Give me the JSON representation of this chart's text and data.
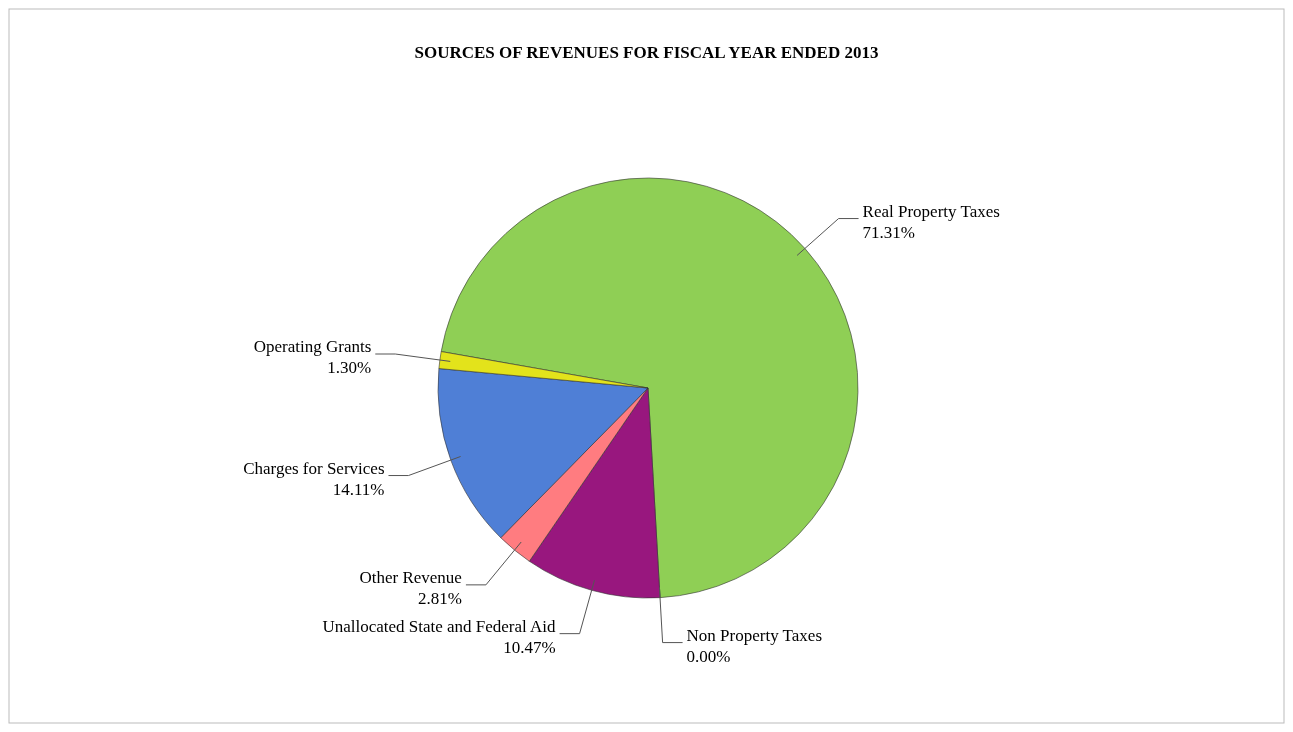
{
  "chart_data": {
    "type": "pie",
    "title": "SOURCES OF REVENUES FOR FISCAL YEAR ENDED 2013",
    "categories": [
      "Real Property Taxes",
      "Non Property Taxes",
      "Unallocated State and Federal Aid",
      "Other Revenue",
      "Charges for Services",
      "Operating Grants"
    ],
    "values": [
      71.31,
      0.0,
      10.47,
      2.81,
      14.11,
      1.3
    ],
    "value_labels": [
      "71.31%",
      "0.00%",
      "10.47%",
      "2.81%",
      "14.11%",
      "1.30%"
    ],
    "colors": [
      "#8fcf55",
      "#b7dee8",
      "#98177e",
      "#ff7c80",
      "#4f7fd6",
      "#e3e31b"
    ]
  }
}
